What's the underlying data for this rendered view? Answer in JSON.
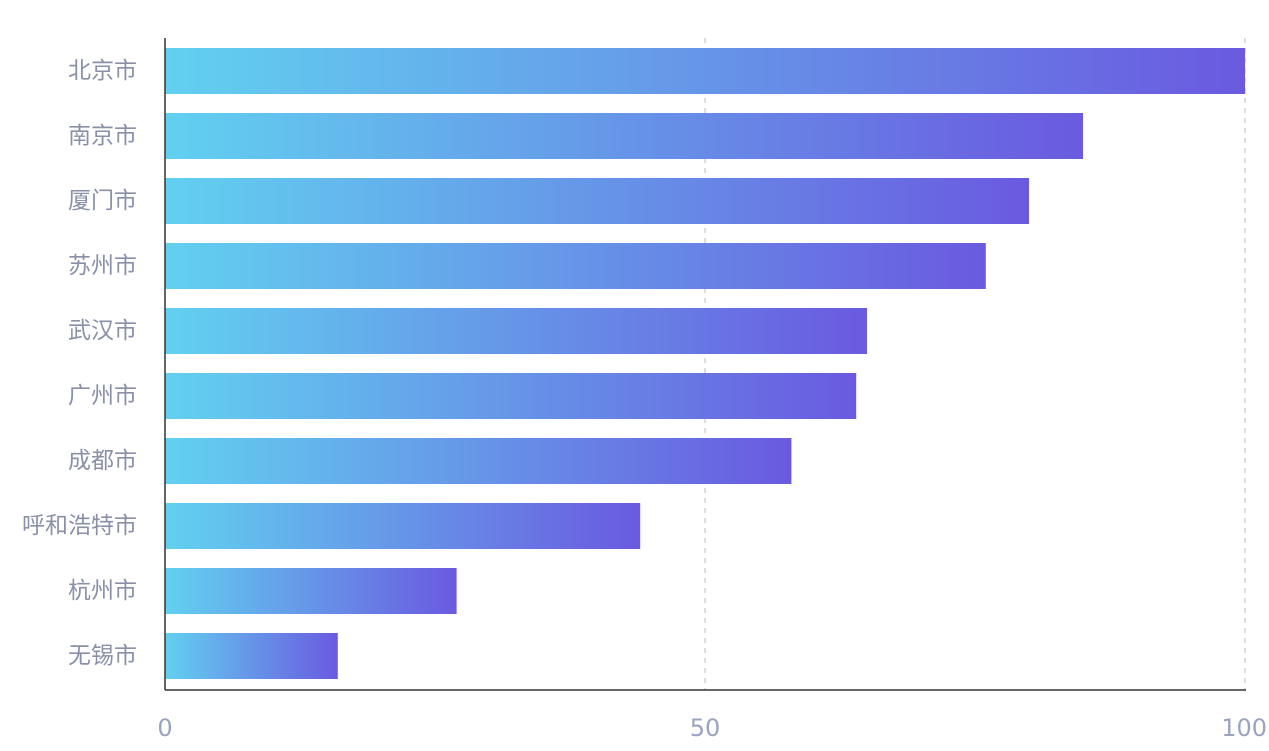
{
  "chart_data": {
    "type": "bar",
    "orientation": "horizontal",
    "categories": [
      "北京市",
      "南京市",
      "厦门市",
      "苏州市",
      "武汉市",
      "广州市",
      "成都市",
      "呼和浩特市",
      "杭州市",
      "无锡市"
    ],
    "values": [
      100,
      85,
      80,
      76,
      65,
      64,
      58,
      44,
      27,
      16
    ],
    "xlim": [
      0,
      100
    ],
    "xticks": [
      "0",
      "50",
      "100"
    ],
    "grid": true,
    "legend": "none",
    "colors": {
      "bar_gradient_start": "#62d0f0",
      "bar_gradient_end": "#6a5ae0",
      "label": "#8a90a8",
      "tick": "#9aa3bf",
      "grid": "#cfd3dc",
      "axis": "#333333"
    }
  }
}
